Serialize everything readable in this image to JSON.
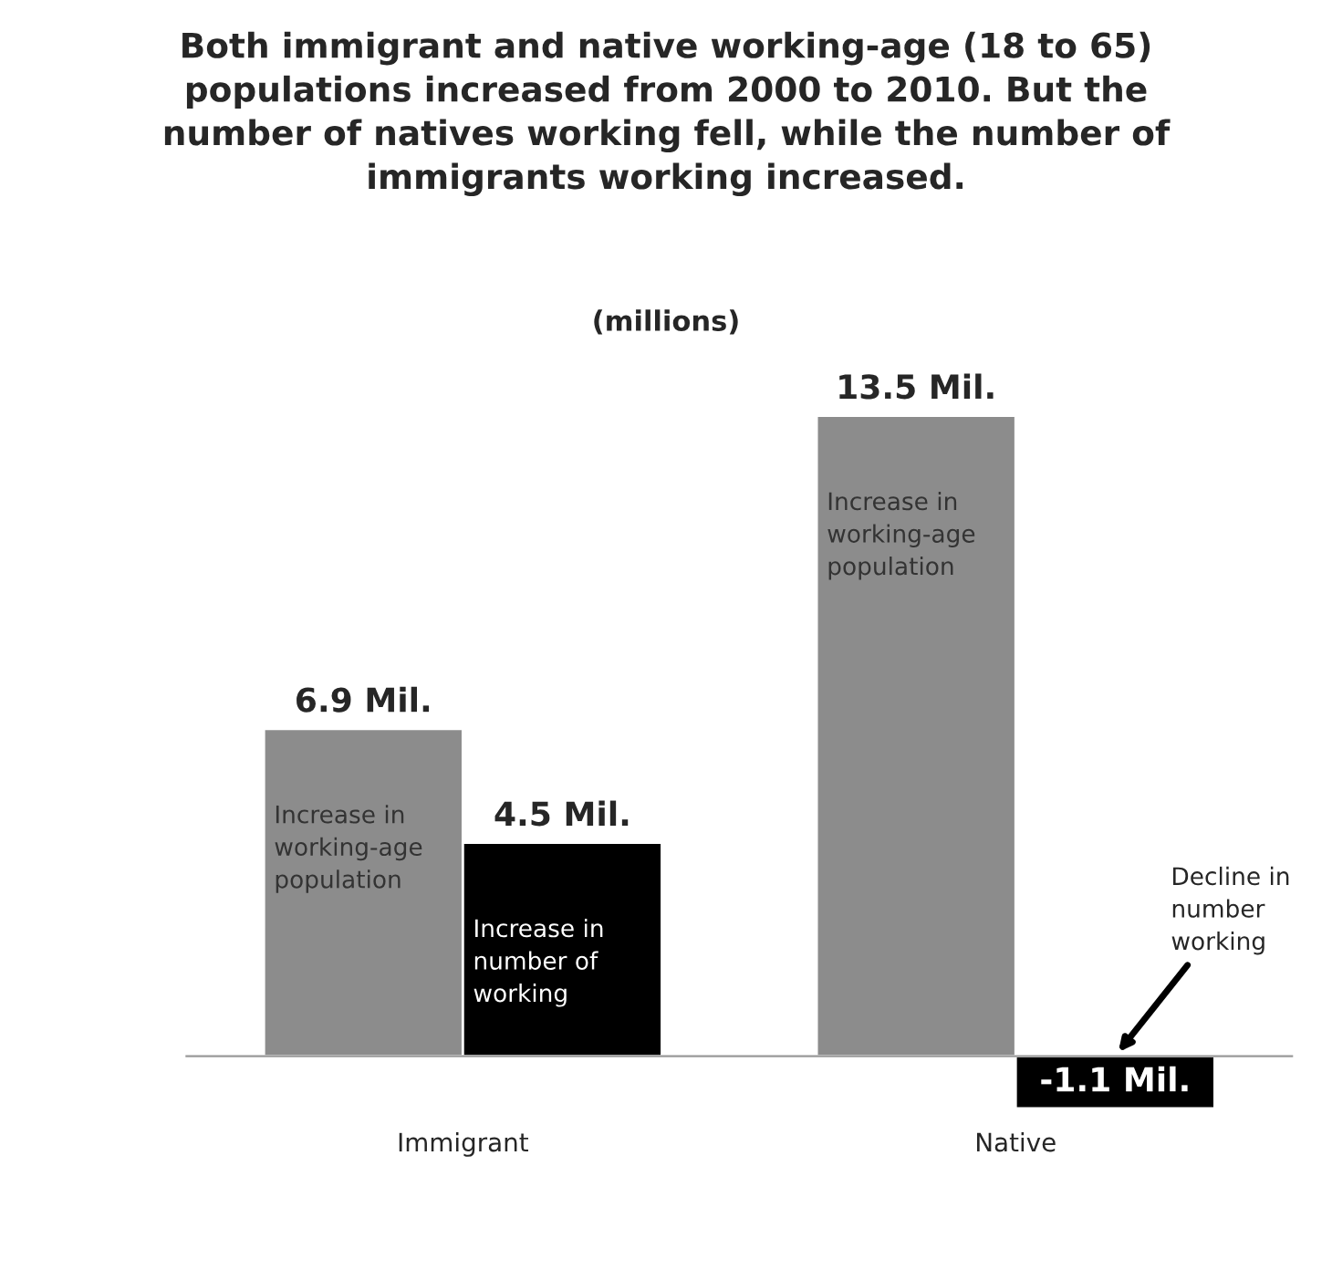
{
  "chart_data": {
    "type": "bar",
    "title": "Both immigrant and native working-age (18 to 65) populations increased from 2000 to 2010. But the number of natives working fell, while the number of immigrants working increased.",
    "subtitle": "(millions)",
    "categories": [
      "Immigrant",
      "Native"
    ],
    "series": [
      {
        "name": "Increase in working-age population",
        "color": "#8c8c8c",
        "values": [
          6.9,
          13.5
        ],
        "value_labels": [
          "6.9 Mil.",
          "13.5 Mil."
        ]
      },
      {
        "name": "Increase in number of working",
        "color": "#000000",
        "values": [
          4.5,
          -1.1
        ],
        "value_labels": [
          "4.5 Mil.",
          "-1.1 Mil."
        ]
      }
    ],
    "annotations": [
      "Decline in number working"
    ],
    "grid": false,
    "legend": false
  }
}
